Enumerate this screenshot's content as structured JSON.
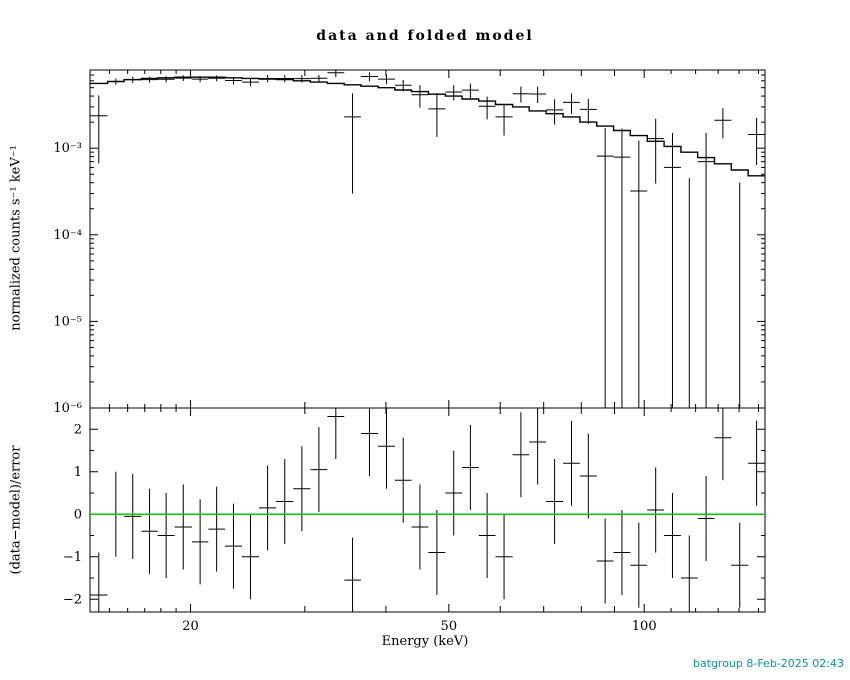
{
  "footer": {
    "text": "batgroup  8-Feb-2025 02:43",
    "color": "#009898"
  },
  "chart_data": {
    "type": "scatter",
    "title": "data and folded model",
    "xlabel": "Energy (keV)",
    "ylabel_top": "normalized counts s⁻¹ keV⁻¹",
    "ylabel_bottom": "(data−model)/error",
    "x_scale": "log",
    "xlim": [
      14.0,
      153.5
    ],
    "x_ticks": [
      {
        "value": 20,
        "label": "20"
      },
      {
        "value": 50,
        "label": "50"
      },
      {
        "value": 100,
        "label": "100"
      }
    ],
    "x_medium_ticks": [
      30,
      40,
      60,
      70,
      80,
      90
    ],
    "x_minor_ticks": [
      15,
      16,
      17,
      18,
      19,
      110,
      120,
      130,
      140,
      150
    ],
    "top_panel": {
      "y_scale": "log",
      "ylim": [
        1e-06,
        0.008
      ],
      "y_ticks": [
        {
          "value": 0.001,
          "label": "10⁻³"
        },
        {
          "value": 0.0001,
          "label": "10⁻⁴"
        },
        {
          "value": 1e-05,
          "label": "10⁻⁵"
        },
        {
          "value": 1e-06,
          "label": "10⁻⁶"
        }
      ],
      "data_color": "#000000",
      "model_color": "#000000"
    },
    "bottom_panel": {
      "y_scale": "linear",
      "ylim": [
        -2.3,
        2.5
      ],
      "y_ticks": [
        {
          "value": 2,
          "label": "2"
        },
        {
          "value": 1,
          "label": "1"
        },
        {
          "value": 0,
          "label": "0"
        },
        {
          "value": -1,
          "label": "−1"
        },
        {
          "value": -2,
          "label": "−2"
        }
      ],
      "y_minor_ticks": [
        1.5,
        0.5,
        -0.5,
        -1.5
      ],
      "zero_line_color": "#00cc00",
      "resid_err": 1
    },
    "bins": {
      "e_edges": [
        14.0,
        14.9,
        15.8,
        16.8,
        17.8,
        18.9,
        20.1,
        21.3,
        22.6,
        24.0,
        25.5,
        27.1,
        28.8,
        30.6,
        32.5,
        34.5,
        36.6,
        38.9,
        41.3,
        43.8,
        46.5,
        49.4,
        52.4,
        55.6,
        59.0,
        62.7,
        66.5,
        70.6,
        75.0,
        79.6,
        84.5,
        89.7,
        95.2,
        101.1,
        107.3,
        113.9,
        120.9,
        128.3,
        136.2,
        144.6,
        153.5
      ],
      "rate": [
        0.00237,
        0.0059,
        0.00618,
        0.0062,
        0.00625,
        0.00645,
        0.00628,
        0.00643,
        0.00605,
        0.0058,
        0.00639,
        0.00638,
        0.00636,
        0.00643,
        0.00744,
        0.0023,
        0.00672,
        0.00628,
        0.00534,
        0.00414,
        0.00285,
        0.00445,
        0.00469,
        0.00305,
        0.0023,
        0.00426,
        0.00423,
        0.00277,
        0.00338,
        0.00281,
        0.00081,
        0.00079,
        0.00032,
        0.00129,
        0.0006,
        -0.00045,
        0.0007,
        0.0021,
        -0.0004,
        0.00144
      ],
      "rate_err": [
        0.0017,
        0.0005,
        0.0005,
        0.0005,
        0.0005,
        0.0005,
        0.0005,
        0.0005,
        0.0006,
        0.0006,
        0.0006,
        0.0006,
        0.0006,
        0.0006,
        0.0008,
        0.002,
        0.0008,
        0.0008,
        0.0008,
        0.0012,
        0.0015,
        0.0009,
        0.0009,
        0.0009,
        0.0009,
        0.0009,
        0.0009,
        0.0009,
        0.0009,
        0.0009,
        0.0009,
        0.0009,
        0.0009,
        0.0009,
        0.0009,
        0.0009,
        0.0008,
        0.0008,
        0.0008,
        0.0008
      ],
      "model": [
        0.0056,
        0.0059,
        0.0062,
        0.0064,
        0.0065,
        0.0066,
        0.0066,
        0.0066,
        0.0065,
        0.0064,
        0.0063,
        0.0062,
        0.006,
        0.0058,
        0.0056,
        0.0054,
        0.0052,
        0.005,
        0.0047,
        0.0045,
        0.0042,
        0.004,
        0.0037,
        0.0035,
        0.0032,
        0.003,
        0.0027,
        0.0025,
        0.0023,
        0.002,
        0.0018,
        0.0016,
        0.0014,
        0.0012,
        0.00105,
        0.0009,
        0.00078,
        0.00066,
        0.00056,
        0.00048
      ],
      "resid": [
        -1.9,
        0.0,
        -0.05,
        -0.4,
        -0.5,
        -0.3,
        -0.65,
        -0.35,
        -0.75,
        -1.0,
        0.15,
        0.3,
        0.6,
        1.05,
        2.3,
        -1.55,
        1.9,
        1.6,
        0.8,
        -0.3,
        -0.9,
        0.5,
        1.1,
        -0.5,
        -1.0,
        1.4,
        1.7,
        0.3,
        1.2,
        0.9,
        -1.1,
        -0.9,
        -1.2,
        0.1,
        -0.5,
        -1.5,
        -0.1,
        1.8,
        -1.2,
        1.2
      ]
    }
  }
}
